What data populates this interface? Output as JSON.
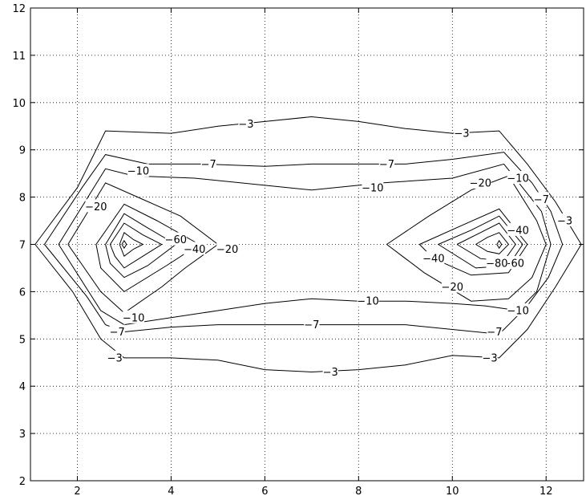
{
  "chart_data": {
    "type": "contour",
    "title": "",
    "xlabel": "",
    "ylabel": "",
    "xlim": [
      1,
      12.8
    ],
    "ylim": [
      2,
      12
    ],
    "grid": true,
    "xticks": [
      2,
      4,
      6,
      8,
      10,
      12
    ],
    "yticks": [
      2,
      3,
      4,
      5,
      6,
      7,
      8,
      9,
      10,
      11,
      12
    ],
    "levels": [
      {
        "value": -3,
        "label": "-3",
        "paths": [
          [
            [
              1.1,
              7
            ],
            [
              2,
              8.2
            ],
            [
              2.6,
              9.4
            ],
            [
              4,
              9.35
            ],
            [
              5,
              9.5
            ],
            [
              6,
              9.6
            ],
            [
              7,
              9.7
            ],
            [
              8,
              9.6
            ],
            [
              9,
              9.45
            ],
            [
              10,
              9.35
            ],
            [
              11,
              9.4
            ],
            [
              11.6,
              8.7
            ],
            [
              12.2,
              7.9
            ],
            [
              12.75,
              7
            ],
            [
              12.2,
              6.1
            ],
            [
              11.6,
              5.2
            ],
            [
              11,
              4.6
            ],
            [
              10,
              4.65
            ],
            [
              9,
              4.45
            ],
            [
              8,
              4.35
            ],
            [
              7,
              4.3
            ],
            [
              6,
              4.35
            ],
            [
              5,
              4.55
            ],
            [
              4,
              4.6
            ],
            [
              3,
              4.6
            ],
            [
              2.5,
              5
            ],
            [
              1.9,
              6
            ],
            [
              1.1,
              7
            ]
          ]
        ],
        "labels": [
          [
            5.6,
            9.55
          ],
          [
            10.2,
            9.35
          ],
          [
            12.4,
            7.5
          ],
          [
            2.8,
            4.6
          ],
          [
            7.4,
            4.3
          ],
          [
            10.8,
            4.6
          ]
        ]
      },
      {
        "value": -7,
        "label": "-7",
        "paths": [
          [
            [
              1.3,
              7
            ],
            [
              2.1,
              8.2
            ],
            [
              2.6,
              8.9
            ],
            [
              3.5,
              8.7
            ],
            [
              4.7,
              8.7
            ],
            [
              6,
              8.65
            ],
            [
              7,
              8.7
            ],
            [
              8,
              8.7
            ],
            [
              9,
              8.7
            ],
            [
              10,
              8.8
            ],
            [
              11.1,
              8.95
            ],
            [
              11.7,
              8.3
            ],
            [
              12.1,
              7.7
            ],
            [
              12.35,
              7
            ],
            [
              12.05,
              6.3
            ],
            [
              11.6,
              5.7
            ],
            [
              11,
              5.1
            ],
            [
              10,
              5.2
            ],
            [
              9,
              5.3
            ],
            [
              8,
              5.3
            ],
            [
              7,
              5.3
            ],
            [
              6,
              5.3
            ],
            [
              5,
              5.3
            ],
            [
              4,
              5.25
            ],
            [
              3,
              5.15
            ],
            [
              2.6,
              5.3
            ],
            [
              2.2,
              5.9
            ],
            [
              1.3,
              7
            ]
          ]
        ],
        "labels": [
          [
            4.8,
            8.7
          ],
          [
            8.6,
            8.7
          ],
          [
            11.9,
            7.95
          ],
          [
            2.85,
            5.15
          ],
          [
            7,
            5.3
          ],
          [
            10.9,
            5.15
          ]
        ]
      },
      {
        "value": -10,
        "label": "-10",
        "paths": [
          [
            [
              1.6,
              7
            ],
            [
              2.6,
              8.6
            ],
            [
              3.2,
              8.45
            ],
            [
              4.5,
              8.4
            ],
            [
              6,
              8.25
            ],
            [
              7,
              8.15
            ],
            [
              8.5,
              8.3
            ],
            [
              10,
              8.4
            ],
            [
              11.1,
              8.7
            ],
            [
              11.9,
              7.7
            ],
            [
              12.1,
              7
            ],
            [
              11.8,
              6
            ],
            [
              11.4,
              5.6
            ],
            [
              10.7,
              5.7
            ],
            [
              10,
              5.75
            ],
            [
              9,
              5.8
            ],
            [
              8,
              5.8
            ],
            [
              7,
              5.85
            ],
            [
              6,
              5.75
            ],
            [
              5,
              5.6
            ],
            [
              4,
              5.45
            ],
            [
              3,
              5.3
            ],
            [
              2.5,
              5.6
            ],
            [
              1.6,
              7
            ]
          ]
        ],
        "labels": [
          [
            3.3,
            8.55
          ],
          [
            8.3,
            8.2
          ],
          [
            11.4,
            8.4
          ],
          [
            3.2,
            5.45
          ],
          [
            8.2,
            5.8
          ],
          [
            11.4,
            5.6
          ]
        ]
      },
      {
        "value": -20,
        "label": "-20",
        "paths": [
          [
            [
              1.8,
              7
            ],
            [
              2.6,
              8.3
            ],
            [
              3.4,
              7.95
            ],
            [
              4.2,
              7.6
            ],
            [
              5,
              7
            ],
            [
              4.3,
              6.5
            ],
            [
              3.8,
              6.1
            ],
            [
              3,
              5.55
            ],
            [
              2.5,
              6
            ],
            [
              1.8,
              7
            ]
          ],
          [
            [
              8.6,
              7
            ],
            [
              9.5,
              7.6
            ],
            [
              10.4,
              8.15
            ],
            [
              11.2,
              8.45
            ],
            [
              11.8,
              7.5
            ],
            [
              12,
              7
            ],
            [
              11.7,
              6.3
            ],
            [
              11.2,
              5.85
            ],
            [
              10.4,
              5.8
            ],
            [
              9.4,
              6.4
            ],
            [
              8.6,
              7
            ]
          ]
        ],
        "labels": [
          [
            2.4,
            7.8
          ],
          [
            5.2,
            6.9
          ],
          [
            10.6,
            8.3
          ],
          [
            10.0,
            6.1
          ]
        ]
      },
      {
        "value": -40,
        "label": "-40",
        "paths": [
          [
            [
              2.4,
              7
            ],
            [
              3,
              7.85
            ],
            [
              3.7,
              7.5
            ],
            [
              4.6,
              7
            ],
            [
              3.9,
              6.55
            ],
            [
              3,
              6
            ],
            [
              2.5,
              6.5
            ],
            [
              2.4,
              7
            ]
          ],
          [
            [
              9.3,
              7
            ],
            [
              10.2,
              7.4
            ],
            [
              11,
              7.75
            ],
            [
              11.6,
              7
            ],
            [
              11.2,
              6.4
            ],
            [
              10.4,
              6.35
            ],
            [
              9.6,
              6.7
            ],
            [
              9.3,
              7
            ]
          ]
        ],
        "labels": [
          [
            4.5,
            6.9
          ],
          [
            11.4,
            7.3
          ],
          [
            9.6,
            6.7
          ]
        ]
      },
      {
        "value": -60,
        "label": "-60",
        "paths": [
          [
            [
              2.6,
              7
            ],
            [
              3,
              7.65
            ],
            [
              3.5,
              7.35
            ],
            [
              4.1,
              7
            ],
            [
              3.5,
              6.55
            ],
            [
              3,
              6.3
            ],
            [
              2.7,
              6.6
            ],
            [
              2.6,
              7
            ]
          ],
          [
            [
              9.7,
              7
            ],
            [
              10.4,
              7.3
            ],
            [
              11,
              7.6
            ],
            [
              11.5,
              7
            ],
            [
              11.2,
              6.55
            ],
            [
              10.5,
              6.5
            ],
            [
              9.7,
              7
            ]
          ]
        ],
        "labels": [
          [
            4.1,
            7.1
          ],
          [
            11.3,
            6.6
          ]
        ]
      },
      {
        "value": -80,
        "label": "-80",
        "paths": [
          [
            [
              2.7,
              7
            ],
            [
              3,
              7.45
            ],
            [
              3.4,
              7.2
            ],
            [
              3.8,
              7
            ],
            [
              3.4,
              6.75
            ],
            [
              3,
              6.5
            ],
            [
              2.8,
              6.75
            ],
            [
              2.7,
              7
            ]
          ],
          [
            [
              10.1,
              7
            ],
            [
              10.6,
              7.25
            ],
            [
              11,
              7.45
            ],
            [
              11.35,
              7
            ],
            [
              11.1,
              6.65
            ],
            [
              10.6,
              6.7
            ],
            [
              10.1,
              7
            ]
          ]
        ],
        "labels": [
          [
            10.95,
            6.6
          ]
        ]
      },
      {
        "value": -100,
        "label": "",
        "paths": [
          [
            [
              2.9,
              7
            ],
            [
              3,
              7.25
            ],
            [
              3.2,
              7.1
            ],
            [
              3.4,
              7
            ],
            [
              3.2,
              6.9
            ],
            [
              3,
              6.75
            ],
            [
              2.9,
              7
            ]
          ],
          [
            [
              10.5,
              7
            ],
            [
              10.75,
              7.15
            ],
            [
              11,
              7.25
            ],
            [
              11.2,
              7
            ],
            [
              11,
              6.8
            ],
            [
              10.75,
              6.85
            ],
            [
              10.5,
              7
            ]
          ]
        ],
        "labels": []
      },
      {
        "value": -120,
        "label": "",
        "paths": [
          [
            [
              2.95,
              7
            ],
            [
              3,
              7.08
            ],
            [
              3.05,
              7
            ],
            [
              3,
              6.92
            ],
            [
              2.95,
              7
            ]
          ],
          [
            [
              10.95,
              7
            ],
            [
              11,
              7.08
            ],
            [
              11.05,
              7
            ],
            [
              11,
              6.92
            ],
            [
              10.95,
              7
            ]
          ]
        ],
        "labels": []
      }
    ]
  }
}
